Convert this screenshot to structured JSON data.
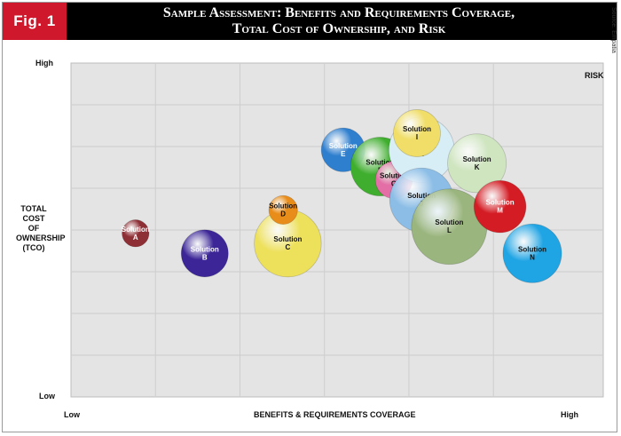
{
  "header": {
    "fig_label": "Fig. 1",
    "title_line1": "Sample Assessment: Benefits and Requirements Coverage,",
    "title_line2": "Total Cost of Ownership, and Risk",
    "source": "Source: Empatia"
  },
  "chart_data": {
    "type": "bubble",
    "xlabel": "BENEFITS & REQUIREMENTS COVERAGE",
    "x_low_label": "Low",
    "x_high_label": "High",
    "ylabel_lines": [
      "TOTAL",
      "COST",
      "OF",
      "OWNERSHIP",
      "(TCO)"
    ],
    "y_low_label": "Low",
    "y_high_label": "High",
    "size_label": "RISK",
    "xlim": [
      0,
      10
    ],
    "ylim": [
      0,
      10
    ],
    "grid": true,
    "series": [
      {
        "name": "Solution A",
        "line1": "Solution",
        "line2": "A",
        "x": 1.4,
        "y": 4.9,
        "size": 1.3,
        "color": "#8e2f36"
      },
      {
        "name": "Solution B",
        "line1": "Solution",
        "line2": "B",
        "x": 2.9,
        "y": 4.3,
        "size": 2.5,
        "color": "#3b2597"
      },
      {
        "name": "Solution C",
        "line1": "Solution",
        "line2": "C",
        "x": 4.7,
        "y": 4.6,
        "size": 3.7,
        "color": "#ede05a"
      },
      {
        "name": "Solution D",
        "line1": "Solution",
        "line2": "D",
        "x": 4.6,
        "y": 5.6,
        "size": 1.4,
        "color": "#e98d1a"
      },
      {
        "name": "Solution E",
        "line1": "Solution",
        "line2": "E",
        "x": 5.9,
        "y": 7.4,
        "size": 2.3,
        "color": "#2f7fcf"
      },
      {
        "name": "Solution F",
        "line1": "Solution",
        "line2": "F",
        "x": 6.7,
        "y": 6.9,
        "size": 3.2,
        "color": "#3fae2e"
      },
      {
        "name": "Solution G",
        "line1": "Solution",
        "line2": "G",
        "x": 7.0,
        "y": 6.5,
        "size": 1.9,
        "color": "#e36fa6"
      },
      {
        "name": "Solution H",
        "line1": "Solution",
        "line2": "H",
        "x": 7.6,
        "y": 7.4,
        "size": 3.6,
        "color": "#d8eef6"
      },
      {
        "name": "Solution I",
        "line1": "Solution",
        "line2": "I",
        "x": 7.5,
        "y": 7.9,
        "size": 2.5,
        "color": "#f0de68"
      },
      {
        "name": "Solution J",
        "line1": "Solution",
        "line2": "J",
        "x": 7.6,
        "y": 5.9,
        "size": 3.5,
        "color": "#8bbde6"
      },
      {
        "name": "Solution K",
        "line1": "Solution",
        "line2": "K",
        "x": 8.8,
        "y": 7.0,
        "size": 3.2,
        "color": "#cfe5c0"
      },
      {
        "name": "Solution L",
        "line1": "Solution",
        "line2": "L",
        "x": 8.2,
        "y": 5.1,
        "size": 4.2,
        "color": "#9ab57e"
      },
      {
        "name": "Solution M",
        "line1": "Solution",
        "line2": "M",
        "x": 9.3,
        "y": 5.7,
        "size": 2.8,
        "color": "#d41c24"
      },
      {
        "name": "Solution N",
        "line1": "Solution",
        "line2": "N",
        "x": 10.0,
        "y": 4.3,
        "size": 3.2,
        "color": "#1fa4e4"
      }
    ]
  }
}
